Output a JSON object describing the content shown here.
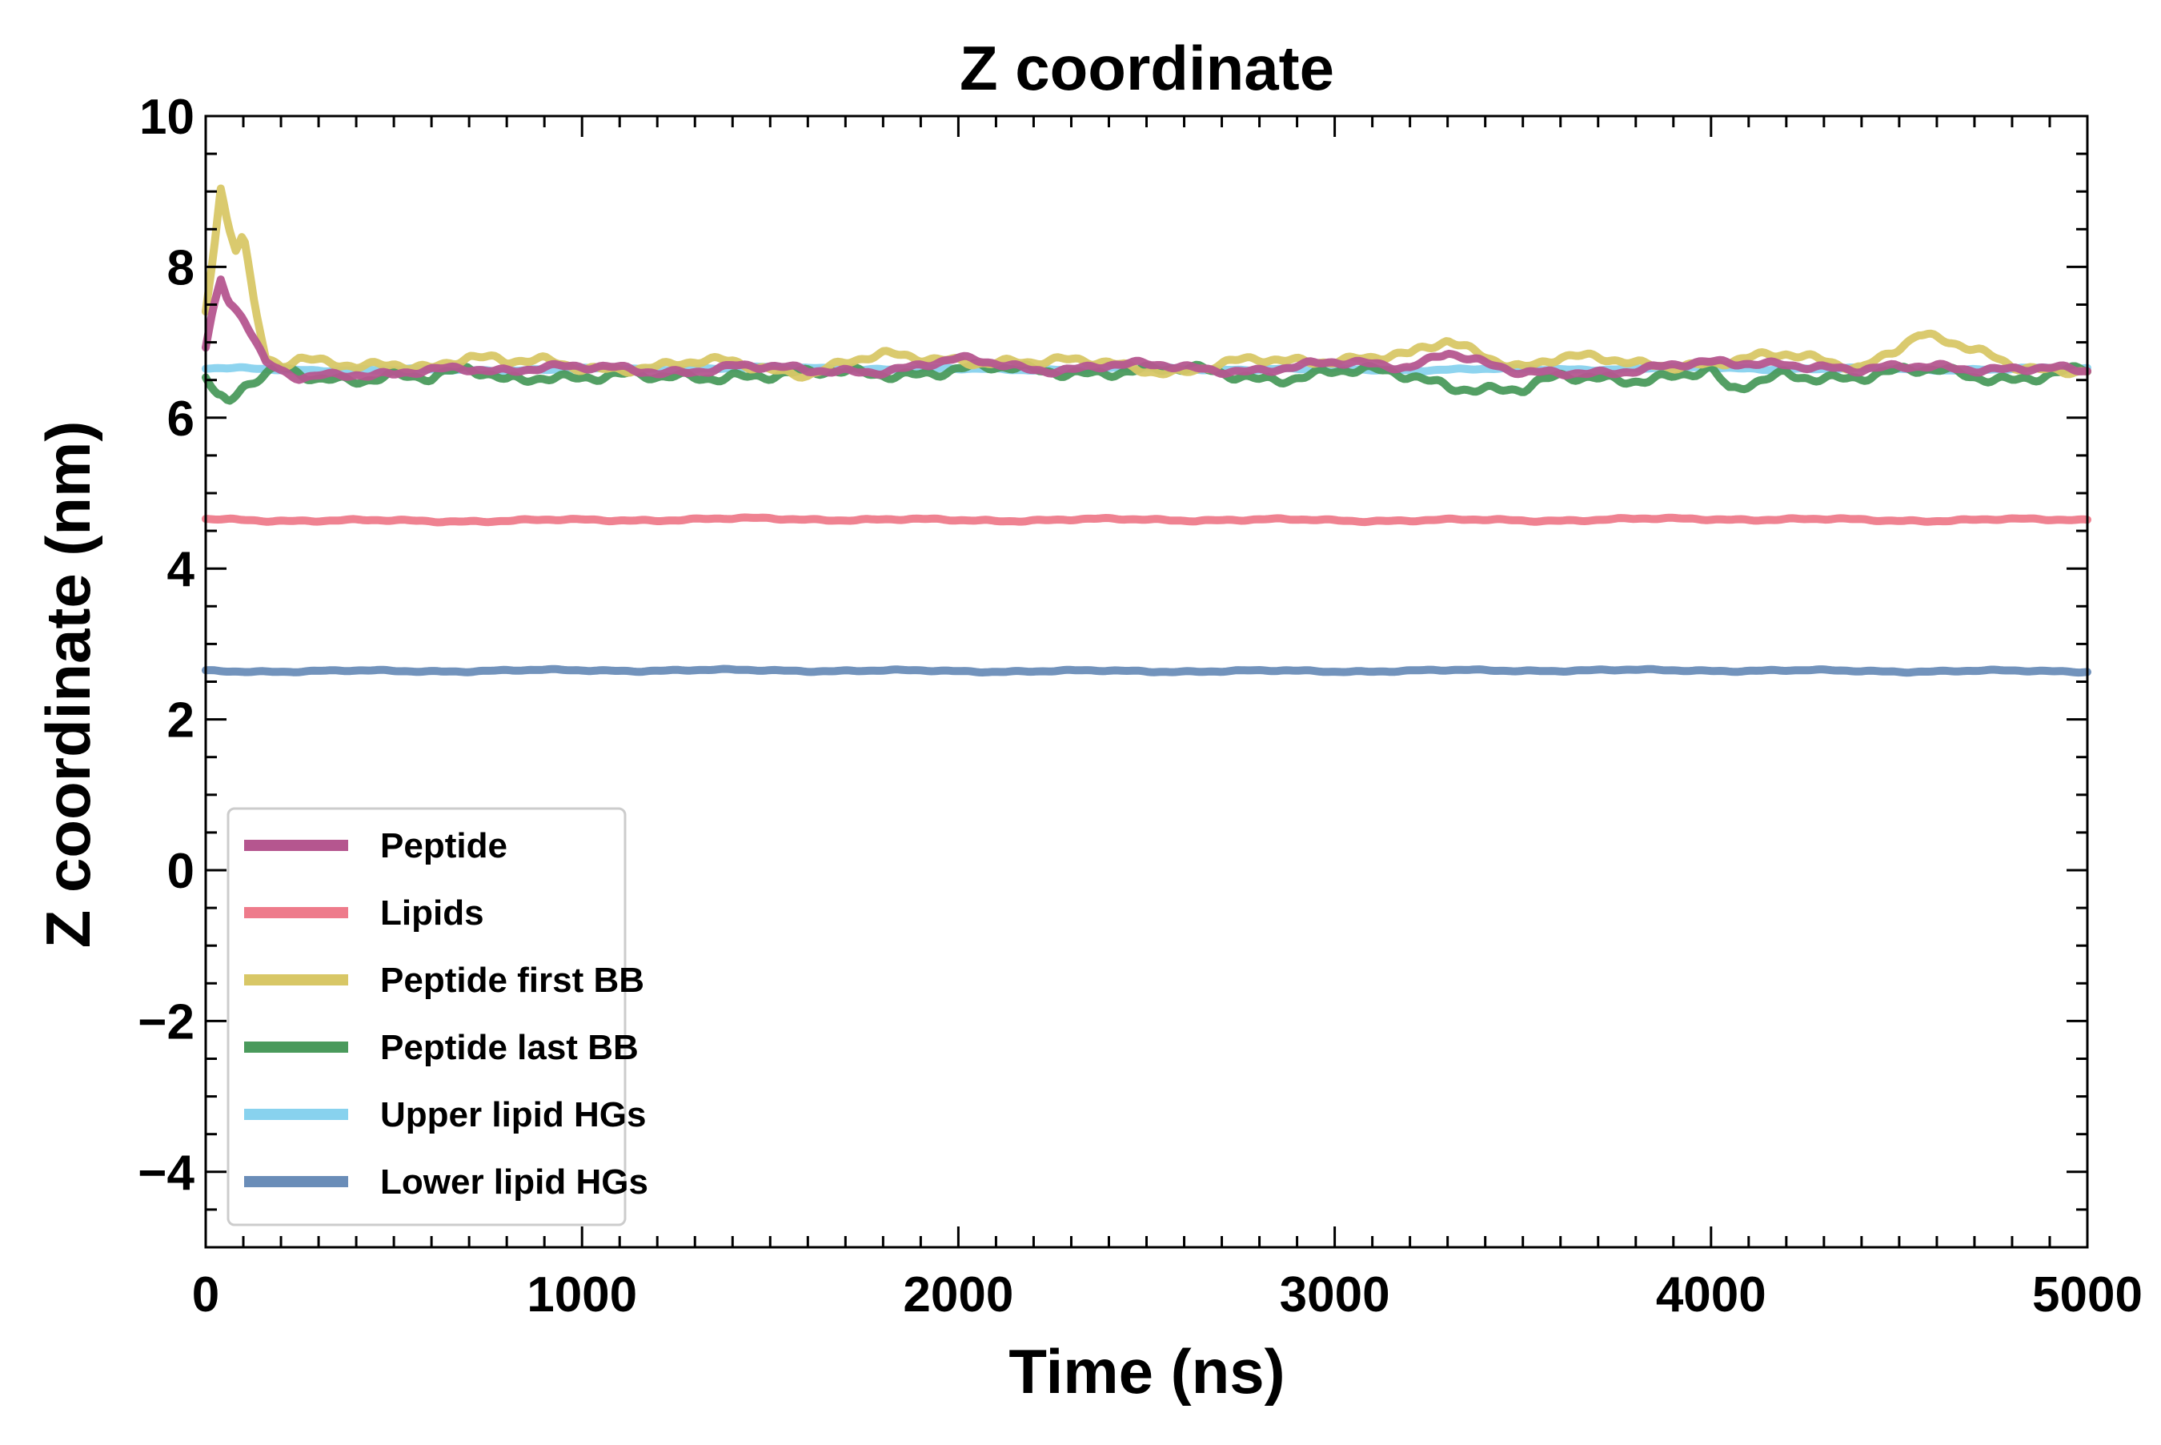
{
  "chart_data": {
    "type": "line",
    "title": "Z coordinate",
    "xlabel": "Time (ns)",
    "ylabel": "Z coordinate (nm)",
    "xlim": [
      0,
      5000
    ],
    "ylim": [
      -5,
      10
    ],
    "x_ticks": [
      0,
      1000,
      2000,
      3000,
      4000,
      5000
    ],
    "x_tick_labels": [
      "0",
      "1000",
      "2000",
      "3000",
      "4000",
      "5000"
    ],
    "y_ticks": [
      10,
      8,
      6,
      4,
      2,
      0,
      -2,
      -4
    ],
    "y_tick_labels": [
      "10",
      "8",
      "6",
      "4",
      "2",
      "0",
      "−2",
      "−4"
    ],
    "grid": false,
    "legend_position": "lower-left",
    "series": [
      {
        "name": "Peptide",
        "color": "#b5568f",
        "x": [
          0,
          20,
          40,
          60,
          80,
          100,
          130,
          160,
          200,
          250,
          300,
          400,
          500,
          600,
          700,
          800,
          900,
          1000,
          1200,
          1400,
          1600,
          1800,
          2000,
          2200,
          2400,
          2600,
          2800,
          3000,
          3200,
          3300,
          3400,
          3500,
          3600,
          3800,
          4000,
          4200,
          4400,
          4600,
          4800,
          5000
        ],
        "y": [
          6.9,
          7.4,
          7.8,
          7.5,
          7.4,
          7.3,
          7.0,
          6.7,
          6.6,
          6.55,
          6.6,
          6.6,
          6.55,
          6.6,
          6.65,
          6.65,
          6.7,
          6.65,
          6.6,
          6.7,
          6.6,
          6.65,
          6.75,
          6.65,
          6.7,
          6.65,
          6.65,
          6.7,
          6.7,
          6.9,
          6.7,
          6.55,
          6.6,
          6.65,
          6.7,
          6.75,
          6.6,
          6.7,
          6.65,
          6.6
        ]
      },
      {
        "name": "Lipids",
        "color": "#ee7b8b",
        "x": [
          0,
          500,
          1000,
          1500,
          2000,
          2500,
          3000,
          3500,
          4000,
          4500,
          5000
        ],
        "y": [
          4.65,
          4.63,
          4.64,
          4.66,
          4.64,
          4.65,
          4.64,
          4.64,
          4.66,
          4.64,
          4.65
        ]
      },
      {
        "name": "Peptide first BB",
        "color": "#d8c766",
        "x": [
          0,
          20,
          40,
          60,
          80,
          100,
          130,
          160,
          200,
          250,
          300,
          400,
          500,
          600,
          700,
          800,
          900,
          1000,
          1200,
          1400,
          1600,
          1800,
          2000,
          2200,
          2400,
          2600,
          2800,
          3000,
          3200,
          3300,
          3400,
          3500,
          3600,
          3800,
          4000,
          4200,
          4400,
          4550,
          4800,
          5000
        ],
        "y": [
          7.4,
          8.2,
          9.1,
          8.6,
          8.3,
          8.5,
          7.5,
          6.8,
          6.7,
          6.75,
          6.7,
          6.65,
          6.75,
          6.7,
          6.8,
          6.7,
          6.75,
          6.7,
          6.65,
          6.75,
          6.6,
          6.8,
          6.8,
          6.7,
          6.75,
          6.6,
          6.75,
          6.8,
          6.8,
          7.0,
          6.85,
          6.7,
          6.8,
          6.7,
          6.75,
          6.8,
          6.7,
          7.1,
          6.7,
          6.65
        ]
      },
      {
        "name": "Peptide last BB",
        "color": "#4a9a5c",
        "x": [
          0,
          30,
          60,
          100,
          150,
          200,
          300,
          400,
          500,
          600,
          700,
          800,
          900,
          1000,
          1200,
          1400,
          1600,
          1800,
          2000,
          2200,
          2400,
          2600,
          2800,
          3000,
          3200,
          3400,
          3500,
          3600,
          3800,
          4000,
          4050,
          4200,
          4400,
          4600,
          4800,
          5000
        ],
        "y": [
          6.6,
          6.3,
          6.2,
          6.4,
          6.5,
          6.6,
          6.5,
          6.55,
          6.6,
          6.5,
          6.6,
          6.5,
          6.6,
          6.55,
          6.5,
          6.6,
          6.55,
          6.6,
          6.65,
          6.6,
          6.65,
          6.6,
          6.55,
          6.6,
          6.55,
          6.4,
          6.35,
          6.5,
          6.55,
          6.6,
          6.3,
          6.6,
          6.55,
          6.6,
          6.55,
          6.6
        ]
      },
      {
        "name": "Upper lipid HGs",
        "color": "#88d2ee",
        "x": [
          0,
          500,
          1000,
          1500,
          2000,
          2500,
          3000,
          3500,
          4000,
          4500,
          5000
        ],
        "y": [
          6.65,
          6.63,
          6.64,
          6.66,
          6.64,
          6.65,
          6.64,
          6.64,
          6.66,
          6.64,
          6.65
        ]
      },
      {
        "name": "Lower lipid HGs",
        "color": "#6a8db8",
        "x": [
          0,
          500,
          1000,
          1500,
          2000,
          2500,
          3000,
          3500,
          4000,
          4500,
          5000
        ],
        "y": [
          2.64,
          2.64,
          2.65,
          2.65,
          2.64,
          2.64,
          2.64,
          2.65,
          2.65,
          2.64,
          2.64
        ]
      }
    ]
  }
}
